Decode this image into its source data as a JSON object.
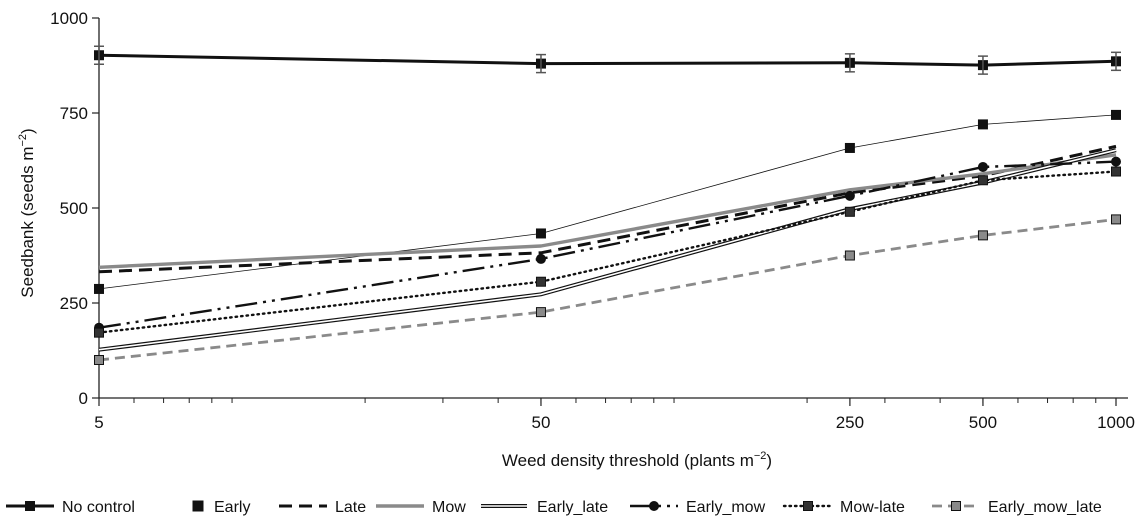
{
  "chart_data": {
    "type": "line",
    "x": [
      5,
      50,
      250,
      500,
      1000
    ],
    "x_tick_labels": [
      "5",
      "50",
      "250",
      "500",
      "1000"
    ],
    "x_scale": "log",
    "xlabel": "Weed density threshold (plants m",
    "xlabel_sup": "−2",
    "xlabel_end": ")",
    "ylabel": "Seedbank (seeds m",
    "ylabel_sup": "−2",
    "ylabel_end": ")",
    "ylim": [
      0,
      1000
    ],
    "y_ticks": [
      0,
      250,
      500,
      750,
      1000
    ],
    "y_tick_labels": [
      "0",
      "250",
      "500",
      "750",
      "1000"
    ],
    "grid": false,
    "legend_position": "bottom",
    "series": [
      {
        "name": "No control",
        "values": [
          902,
          880,
          882,
          876,
          886
        ],
        "color": "#111111"
      },
      {
        "name": "Early",
        "values": [
          287,
          433,
          658,
          720,
          745
        ],
        "color": "#111111"
      },
      {
        "name": "Late",
        "values": [
          332,
          382,
          540,
          585,
          662
        ],
        "color": "#111111"
      },
      {
        "name": "Mow",
        "values": [
          344,
          400,
          548,
          590,
          640
        ],
        "color": "#8a8a8a"
      },
      {
        "name": "Early_late",
        "values": [
          127,
          273,
          497,
          567,
          652
        ],
        "color": "#111111"
      },
      {
        "name": "Early_mow",
        "values": [
          185,
          366,
          532,
          608,
          622
        ],
        "color": "#111111"
      },
      {
        "name": "Mow-late",
        "values": [
          172,
          306,
          490,
          573,
          596
        ],
        "color": "#111111"
      },
      {
        "name": "Early_mow_late",
        "values": [
          100,
          226,
          375,
          428,
          470
        ],
        "color": "#8a8a8a"
      }
    ]
  }
}
